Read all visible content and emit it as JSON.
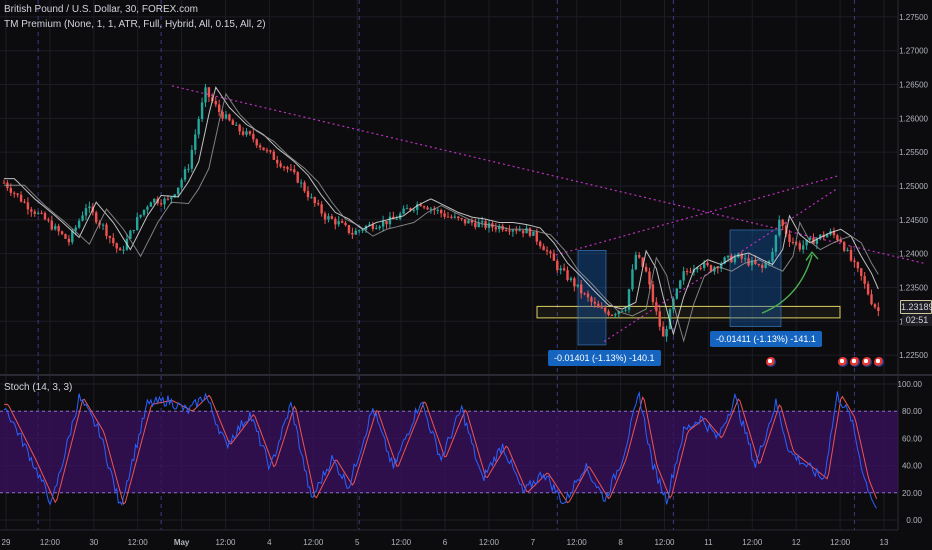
{
  "title": "British Pound / U.S. Dollar, 30, FOREX.com",
  "indicator_label": "TM Premium (None, 1, 1, ATR, Full, Hybrid, All, 0.15, All, 2)",
  "stoch_label": "Stoch (14, 3, 3)",
  "last_price": "1.23189",
  "countdown": "02:51",
  "measure_1": "-0.01401 (-1.13%) -140.1",
  "measure_2": "-0.01411 (-1.13%) -141.1",
  "colors": {
    "background": "#0c0c0f",
    "grid": "#1c1c24",
    "up_candle": "#26a69a",
    "down_candle": "#ef5350",
    "trendline": "#c030c0",
    "zone": "#e0d060",
    "measure_box": "#1565c0",
    "stoch_k": "#2962ff",
    "stoch_d": "#ef5350",
    "stoch_band": "#3a1060",
    "arrow": "#4caf50"
  },
  "chart_data": {
    "type": "candlestick",
    "price_axis_ticks": [
      "1.27500",
      "1.27000",
      "1.26500",
      "1.26000",
      "1.25500",
      "1.25000",
      "1.24500",
      "1.24000",
      "1.23500",
      "1.23000",
      "1.22500"
    ],
    "stoch_axis_ticks": [
      "100.00",
      "80.00",
      "60.00",
      "40.00",
      "20.00",
      "0.00"
    ],
    "time_axis_ticks": [
      "29",
      "12:00",
      "30",
      "12:00",
      "May",
      "12:00",
      "4",
      "12:00",
      "5",
      "12:00",
      "6",
      "12:00",
      "7",
      "12:00",
      "8",
      "12:00",
      "11",
      "12:00",
      "12",
      "12:00",
      "13"
    ],
    "ylim": [
      1.2225,
      1.2775
    ],
    "stoch_ylim": [
      0,
      100
    ],
    "stoch_bands": [
      20,
      80
    ],
    "price_path": [
      [
        0,
        1.2505
      ],
      [
        0.6,
        1.2475
      ],
      [
        1.2,
        1.245
      ],
      [
        1.9,
        1.2418
      ],
      [
        2.4,
        1.247
      ],
      [
        2.9,
        1.244
      ],
      [
        3.4,
        1.24
      ],
      [
        3.9,
        1.245
      ],
      [
        4.3,
        1.248
      ],
      [
        4.8,
        1.2478
      ],
      [
        5.1,
        1.25
      ],
      [
        5.4,
        1.253
      ],
      [
        5.7,
        1.26
      ],
      [
        5.9,
        1.264
      ],
      [
        6.3,
        1.261
      ],
      [
        6.8,
        1.2585
      ],
      [
        7.3,
        1.257
      ],
      [
        7.7,
        1.255
      ],
      [
        8.2,
        1.253
      ],
      [
        8.6,
        1.251
      ],
      [
        9.0,
        1.248
      ],
      [
        9.4,
        1.2455
      ],
      [
        9.8,
        1.2445
      ],
      [
        10.2,
        1.243
      ],
      [
        10.6,
        1.244
      ],
      [
        11.0,
        1.2445
      ],
      [
        11.4,
        1.245
      ],
      [
        11.8,
        1.2465
      ],
      [
        12.2,
        1.2475
      ],
      [
        12.6,
        1.2465
      ],
      [
        13.0,
        1.2455
      ],
      [
        13.4,
        1.2448
      ],
      [
        13.8,
        1.2445
      ],
      [
        14.2,
        1.244
      ],
      [
        14.6,
        1.244
      ],
      [
        15.0,
        1.2437
      ],
      [
        15.4,
        1.2432
      ],
      [
        15.8,
        1.241
      ],
      [
        16.2,
        1.238
      ],
      [
        16.6,
        1.236
      ],
      [
        17.0,
        1.2338
      ],
      [
        17.4,
        1.2318
      ],
      [
        17.8,
        1.2312
      ],
      [
        18.2,
        1.2322
      ],
      [
        18.5,
        1.2398
      ],
      [
        18.8,
        1.2372
      ],
      [
        19.0,
        1.233
      ],
      [
        19.3,
        1.2275
      ],
      [
        19.6,
        1.233
      ],
      [
        19.9,
        1.237
      ],
      [
        20.3,
        1.2385
      ],
      [
        20.7,
        1.2378
      ],
      [
        21.1,
        1.239
      ],
      [
        21.5,
        1.2395
      ],
      [
        21.9,
        1.2385
      ],
      [
        22.2,
        1.2378
      ],
      [
        22.5,
        1.24
      ],
      [
        22.7,
        1.245
      ],
      [
        23.0,
        1.2422
      ],
      [
        23.3,
        1.241
      ],
      [
        23.6,
        1.2418
      ],
      [
        23.9,
        1.2425
      ],
      [
        24.2,
        1.243
      ],
      [
        24.5,
        1.242
      ],
      [
        24.8,
        1.239
      ],
      [
        25.1,
        1.2365
      ],
      [
        25.4,
        1.233
      ],
      [
        25.6,
        1.2315
      ]
    ],
    "stoch_path": [
      [
        0,
        85
      ],
      [
        0.8,
        45
      ],
      [
        1.4,
        12
      ],
      [
        2.2,
        90
      ],
      [
        2.8,
        65
      ],
      [
        3.4,
        10
      ],
      [
        4.2,
        85
      ],
      [
        4.8,
        88
      ],
      [
        5.4,
        80
      ],
      [
        5.9,
        92
      ],
      [
        6.5,
        55
      ],
      [
        7.2,
        78
      ],
      [
        7.8,
        38
      ],
      [
        8.4,
        85
      ],
      [
        9.0,
        15
      ],
      [
        9.6,
        45
      ],
      [
        10.1,
        25
      ],
      [
        10.8,
        82
      ],
      [
        11.4,
        38
      ],
      [
        12.2,
        88
      ],
      [
        12.8,
        45
      ],
      [
        13.4,
        82
      ],
      [
        14.0,
        30
      ],
      [
        14.6,
        55
      ],
      [
        15.2,
        20
      ],
      [
        15.8,
        35
      ],
      [
        16.4,
        12
      ],
      [
        17.0,
        40
      ],
      [
        17.6,
        15
      ],
      [
        18.1,
        45
      ],
      [
        18.6,
        92
      ],
      [
        19.0,
        40
      ],
      [
        19.4,
        15
      ],
      [
        19.9,
        65
      ],
      [
        20.4,
        75
      ],
      [
        20.9,
        60
      ],
      [
        21.4,
        90
      ],
      [
        22.0,
        40
      ],
      [
        22.6,
        86
      ],
      [
        23.0,
        50
      ],
      [
        23.5,
        40
      ],
      [
        24.0,
        30
      ],
      [
        24.4,
        92
      ],
      [
        24.8,
        75
      ],
      [
        25.2,
        30
      ],
      [
        25.6,
        5
      ]
    ]
  }
}
